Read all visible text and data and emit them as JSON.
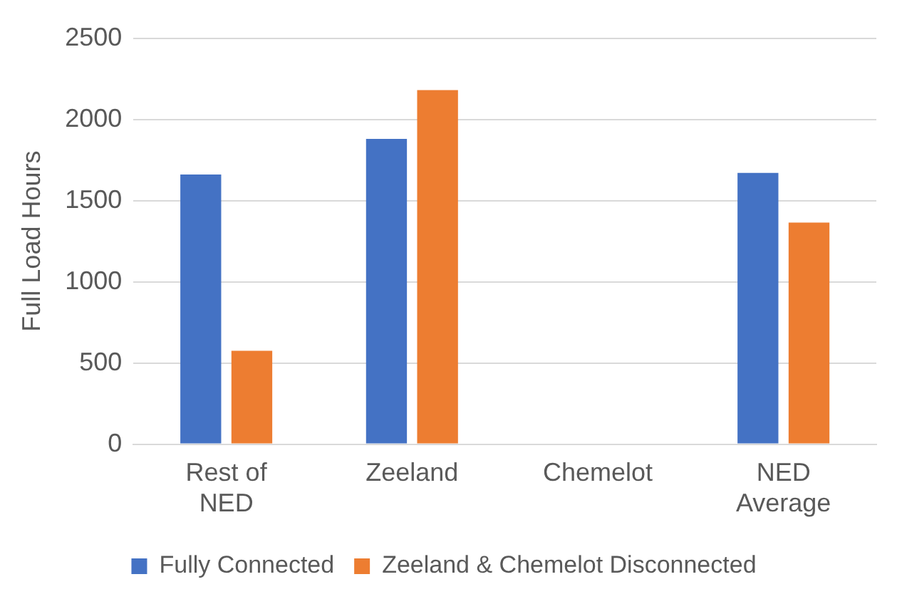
{
  "chart_data": {
    "type": "bar",
    "ylabel": "Full Load Hours",
    "categories": [
      "Rest of NED",
      "Zeeland",
      "Chemelot",
      "NED Average"
    ],
    "series": [
      {
        "name": "Fully Connected",
        "color": "#4472c4",
        "values": [
          1660,
          1880,
          0,
          1670
        ]
      },
      {
        "name": "Zeeland & Chemelot Disconnected",
        "color": "#ed7d31",
        "values": [
          575,
          2180,
          0,
          1365
        ]
      }
    ],
    "ylim": [
      0,
      2500
    ],
    "yticks": [
      0,
      500,
      1000,
      1500,
      2000,
      2500
    ],
    "grid": "y",
    "legend": "bottom"
  }
}
